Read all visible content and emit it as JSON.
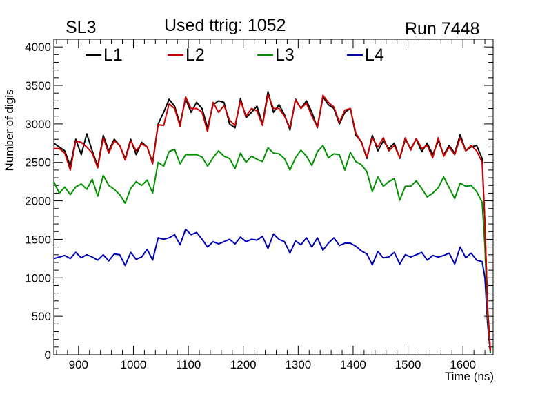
{
  "header": {
    "left": "SL3",
    "center": "Used ttrig: 1052",
    "right": "Run 7448"
  },
  "colors": {
    "L1": "#000000",
    "L2": "#cc0000",
    "L3": "#009000",
    "L4": "#0000b4",
    "axis": "#000000",
    "background": "#ffffff"
  },
  "chart_data": {
    "type": "line",
    "title": "Used ttrig: 1052",
    "xlabel": "Time (ns)",
    "ylabel": "Number of digis",
    "xlim": [
      855,
      1655
    ],
    "ylim": [
      0,
      4100
    ],
    "grid": false,
    "legend_position": "top",
    "x_ticks": [
      900,
      1000,
      1100,
      1200,
      1300,
      1400,
      1500,
      1600
    ],
    "y_ticks": [
      0,
      500,
      1000,
      1500,
      2000,
      2500,
      3000,
      3500,
      4000
    ],
    "x": [
      855,
      865,
      875,
      885,
      895,
      905,
      915,
      925,
      935,
      945,
      955,
      965,
      975,
      985,
      995,
      1005,
      1015,
      1025,
      1035,
      1045,
      1055,
      1065,
      1075,
      1085,
      1095,
      1105,
      1115,
      1125,
      1135,
      1145,
      1155,
      1165,
      1175,
      1185,
      1195,
      1205,
      1215,
      1225,
      1235,
      1245,
      1255,
      1265,
      1275,
      1285,
      1295,
      1305,
      1315,
      1325,
      1335,
      1345,
      1355,
      1365,
      1375,
      1385,
      1395,
      1405,
      1415,
      1425,
      1435,
      1445,
      1455,
      1465,
      1475,
      1485,
      1495,
      1505,
      1515,
      1525,
      1535,
      1545,
      1555,
      1565,
      1575,
      1585,
      1595,
      1605,
      1615,
      1625,
      1635,
      1640,
      1645,
      1650
    ],
    "series": [
      {
        "name": "L1",
        "values": [
          2750,
          2700,
          2650,
          2450,
          2800,
          2600,
          2870,
          2650,
          2450,
          2850,
          2650,
          2800,
          2720,
          2550,
          2800,
          2600,
          2760,
          2700,
          2500,
          3000,
          3150,
          3320,
          3230,
          3000,
          3330,
          3150,
          3280,
          3200,
          2950,
          3250,
          3300,
          3280,
          3000,
          2950,
          3330,
          3080,
          3150,
          3230,
          3000,
          3420,
          3150,
          3250,
          3120,
          2920,
          3320,
          3200,
          3300,
          3150,
          2950,
          3350,
          3250,
          3200,
          3000,
          3150,
          3200,
          2850,
          2770,
          2550,
          2850,
          2650,
          2780,
          2680,
          2750,
          2550,
          2800,
          2680,
          2800,
          2640,
          2750,
          2600,
          2780,
          2600,
          2720,
          2620,
          2860,
          2650,
          2700,
          2720,
          2550,
          1700,
          600,
          50
        ]
      },
      {
        "name": "L2",
        "values": [
          2680,
          2680,
          2620,
          2400,
          2780,
          2760,
          2700,
          2620,
          2430,
          2820,
          2620,
          2780,
          2720,
          2530,
          2780,
          2650,
          2740,
          2700,
          2480,
          2990,
          2980,
          3260,
          3200,
          2970,
          3350,
          3200,
          3200,
          3150,
          2900,
          3280,
          3150,
          3240,
          3050,
          2980,
          3300,
          3100,
          3200,
          3170,
          2980,
          3380,
          3200,
          3200,
          3100,
          2950,
          3310,
          3200,
          3270,
          3100,
          2960,
          3370,
          3280,
          3220,
          3020,
          3180,
          3200,
          2880,
          2760,
          2570,
          2820,
          2700,
          2820,
          2650,
          2720,
          2560,
          2820,
          2660,
          2810,
          2680,
          2720,
          2560,
          2820,
          2580,
          2700,
          2600,
          2820,
          2650,
          2720,
          2650,
          2500,
          1700,
          600,
          50
        ]
      },
      {
        "name": "L3",
        "values": [
          2250,
          2100,
          2180,
          2080,
          2180,
          2220,
          2150,
          2280,
          2060,
          2330,
          2200,
          2150,
          2080,
          1970,
          2160,
          2250,
          2200,
          2270,
          2100,
          2500,
          2450,
          2640,
          2670,
          2480,
          2600,
          2600,
          2600,
          2570,
          2450,
          2560,
          2650,
          2580,
          2550,
          2420,
          2620,
          2500,
          2580,
          2540,
          2510,
          2690,
          2620,
          2610,
          2550,
          2400,
          2560,
          2660,
          2580,
          2460,
          2640,
          2720,
          2560,
          2610,
          2600,
          2400,
          2630,
          2510,
          2470,
          2380,
          2120,
          2310,
          2190,
          2250,
          2290,
          2010,
          2190,
          2190,
          2260,
          2160,
          2050,
          2100,
          2170,
          2310,
          2170,
          2030,
          2230,
          2190,
          2200,
          2120,
          1980,
          1400,
          500,
          30
        ]
      },
      {
        "name": "L4",
        "values": [
          1250,
          1270,
          1290,
          1250,
          1330,
          1260,
          1300,
          1270,
          1230,
          1300,
          1220,
          1310,
          1300,
          1160,
          1330,
          1240,
          1270,
          1370,
          1230,
          1520,
          1500,
          1520,
          1560,
          1430,
          1630,
          1560,
          1590,
          1500,
          1400,
          1470,
          1440,
          1470,
          1500,
          1440,
          1530,
          1470,
          1500,
          1490,
          1540,
          1380,
          1570,
          1500,
          1470,
          1320,
          1480,
          1430,
          1520,
          1400,
          1520,
          1360,
          1450,
          1520,
          1420,
          1450,
          1450,
          1410,
          1350,
          1310,
          1170,
          1340,
          1260,
          1270,
          1330,
          1180,
          1300,
          1270,
          1300,
          1330,
          1230,
          1290,
          1270,
          1290,
          1320,
          1180,
          1400,
          1260,
          1320,
          1230,
          1210,
          1000,
          400,
          20
        ]
      }
    ]
  }
}
